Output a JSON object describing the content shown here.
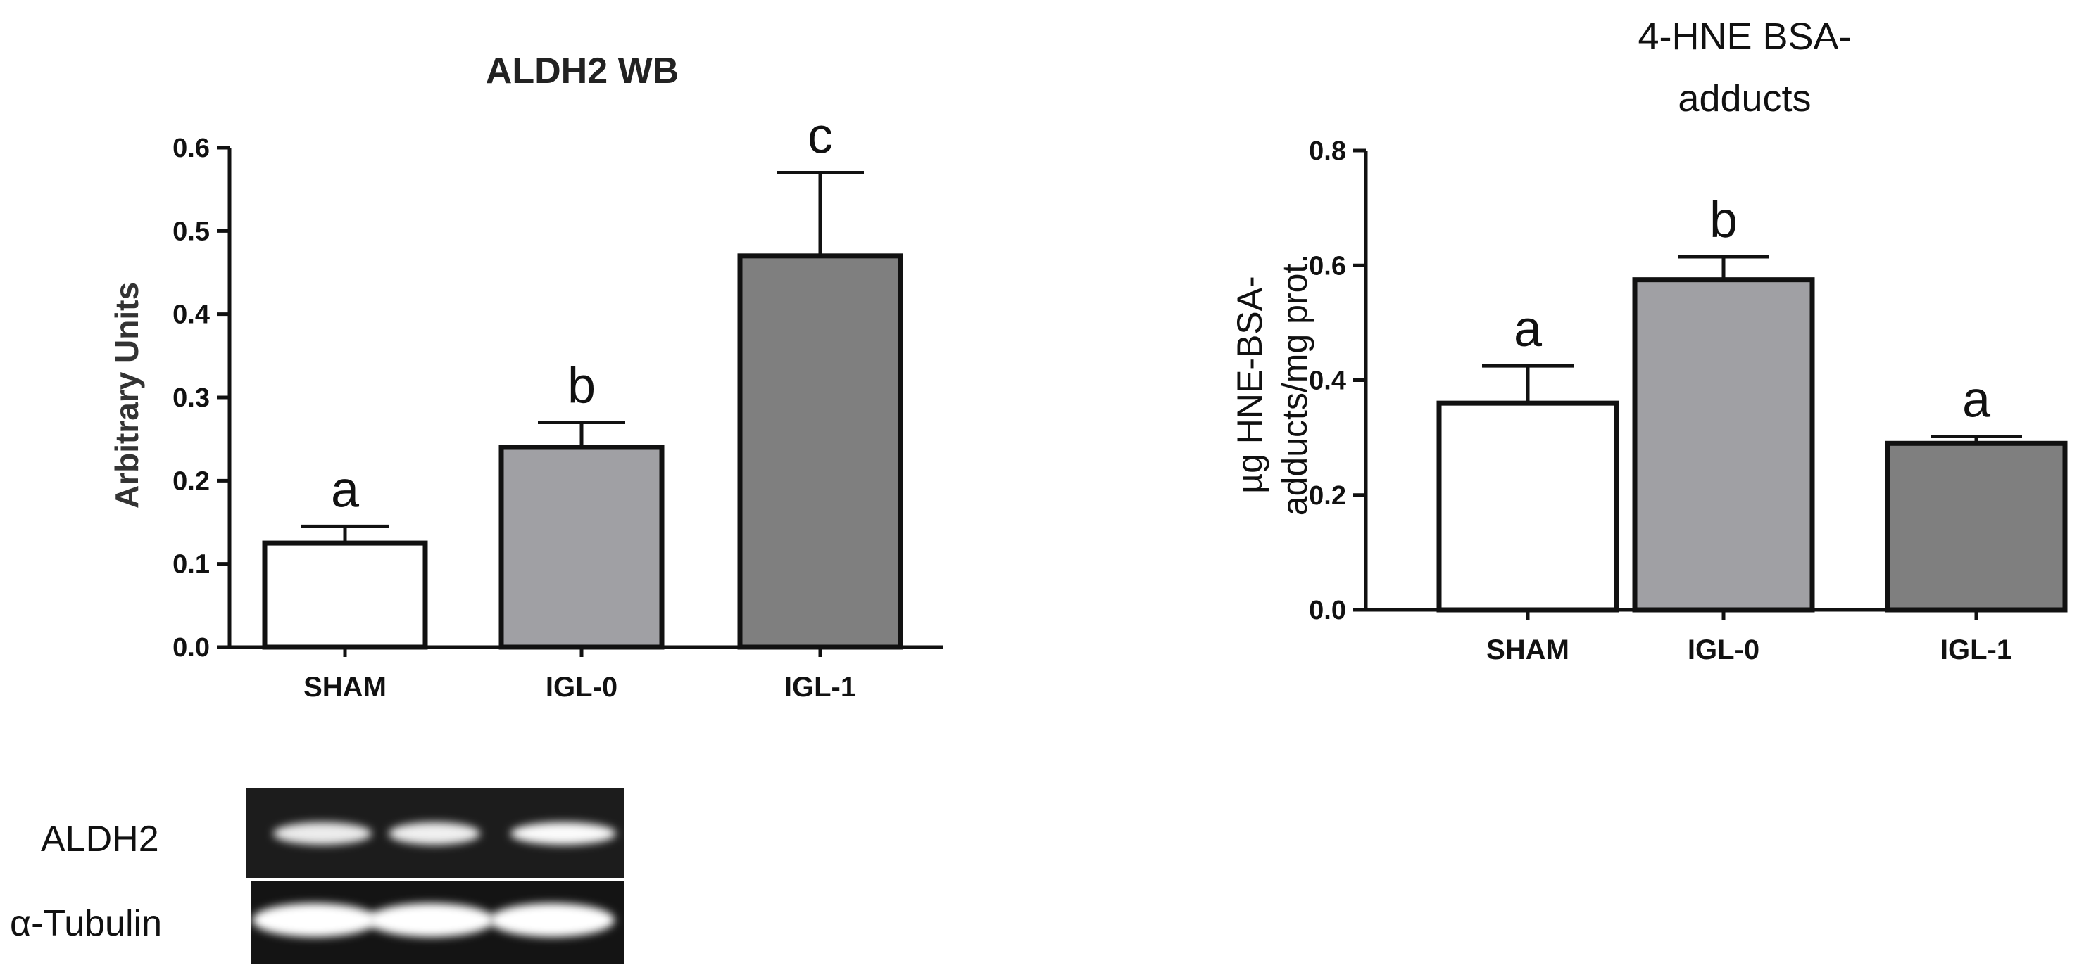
{
  "chart_data": [
    {
      "type": "bar",
      "title": "ALDH2 WB",
      "xlabel": "",
      "ylabel": "Arbitrary Units",
      "categories": [
        "SHAM",
        "IGL-0",
        "IGL-1"
      ],
      "values": [
        0.125,
        0.24,
        0.47
      ],
      "errors": [
        0.02,
        0.03,
        0.1
      ],
      "significance": [
        "a",
        "b",
        "c"
      ],
      "bar_colors": [
        "#ffffff",
        "#a0a0a4",
        "#7f7f7f"
      ],
      "ylim": [
        0,
        0.6
      ],
      "yticks": [
        "0.0",
        "0.1",
        "0.2",
        "0.3",
        "0.4",
        "0.5",
        "0.6"
      ],
      "grid": false,
      "legend": "none"
    },
    {
      "type": "bar",
      "title_lines": [
        "4-HNE BSA-",
        "adducts"
      ],
      "xlabel": "",
      "ylabel_lines": [
        "µg HNE-BSA-",
        "adducts/mg prot."
      ],
      "categories": [
        "SHAM",
        "IGL-0",
        "IGL-1"
      ],
      "values": [
        0.36,
        0.575,
        0.29
      ],
      "errors": [
        0.065,
        0.04,
        0.012
      ],
      "significance": [
        "a",
        "b",
        "a"
      ],
      "bar_colors": [
        "#ffffff",
        "#a0a0a4",
        "#7f7f7f"
      ],
      "ylim": [
        0,
        0.8
      ],
      "yticks": [
        "0.0",
        "0.2",
        "0.4",
        "0.6",
        "0.8"
      ],
      "grid": false,
      "legend": "none"
    }
  ],
  "blot": {
    "rows": [
      {
        "label": "ALDH2",
        "intensity": [
          0.75,
          0.8,
          0.95
        ]
      },
      {
        "label": "α-Tubulin",
        "intensity": [
          1.0,
          1.0,
          1.0
        ]
      }
    ]
  }
}
